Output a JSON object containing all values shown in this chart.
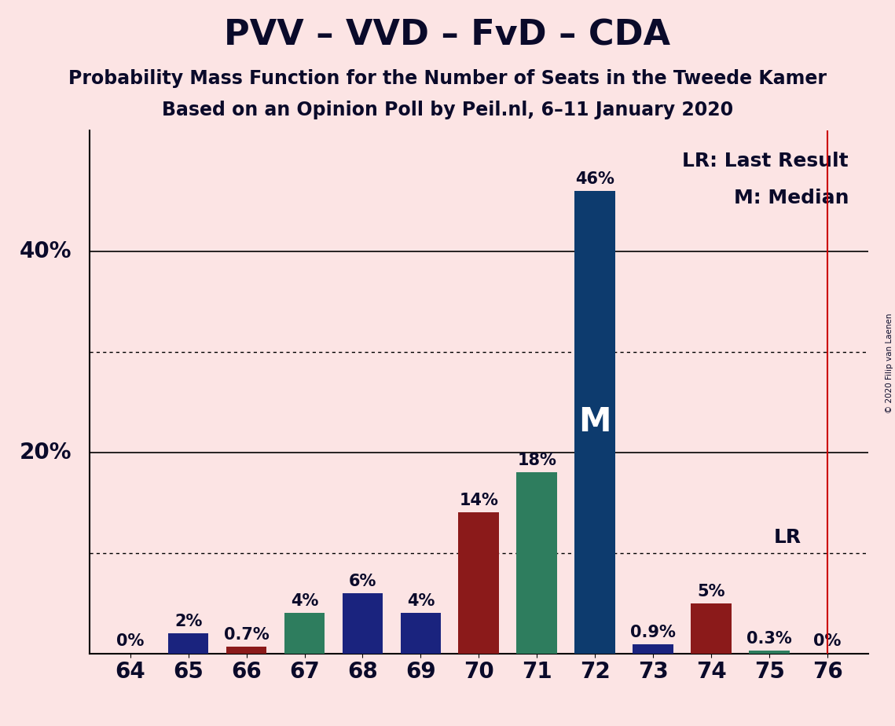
{
  "title": "PVV – VVD – FvD – CDA",
  "subtitle1": "Probability Mass Function for the Number of Seats in the Tweede Kamer",
  "subtitle2": "Based on an Opinion Poll by Peil.nl, 6–11 January 2020",
  "copyright": "© 2020 Filip van Laenen",
  "categories": [
    64,
    65,
    66,
    67,
    68,
    69,
    70,
    71,
    72,
    73,
    74,
    75,
    76
  ],
  "values": [
    0.0,
    2.0,
    0.7,
    4.0,
    6.0,
    4.0,
    14.0,
    18.0,
    46.0,
    0.9,
    5.0,
    0.3,
    0.0
  ],
  "labels": [
    "0%",
    "2%",
    "0.7%",
    "4%",
    "6%",
    "4%",
    "14%",
    "18%",
    "46%",
    "0.9%",
    "5%",
    "0.3%",
    "0%"
  ],
  "bar_colors": [
    "#1a237e",
    "#1a237e",
    "#8b1a1a",
    "#2e7d5e",
    "#1a237e",
    "#1a237e",
    "#8b1a1a",
    "#2e7d5e",
    "#0d3b6e",
    "#1a237e",
    "#8b1a1a",
    "#2e7d5e",
    "#2e7d5e"
  ],
  "median_bar": 72,
  "median_label": "M",
  "lr_line": 76,
  "lr_label": "LR",
  "lr_legend": "LR: Last Result",
  "m_legend": "M: Median",
  "background_color": "#fce4e4",
  "shown_yticks": [
    20,
    40
  ],
  "dotted_yticks": [
    10,
    30
  ],
  "ylim": [
    0,
    52
  ],
  "title_fontsize": 32,
  "subtitle_fontsize": 17,
  "label_fontsize": 15,
  "tick_fontsize": 20,
  "annotation_fontsize": 18,
  "bar_width": 0.7
}
